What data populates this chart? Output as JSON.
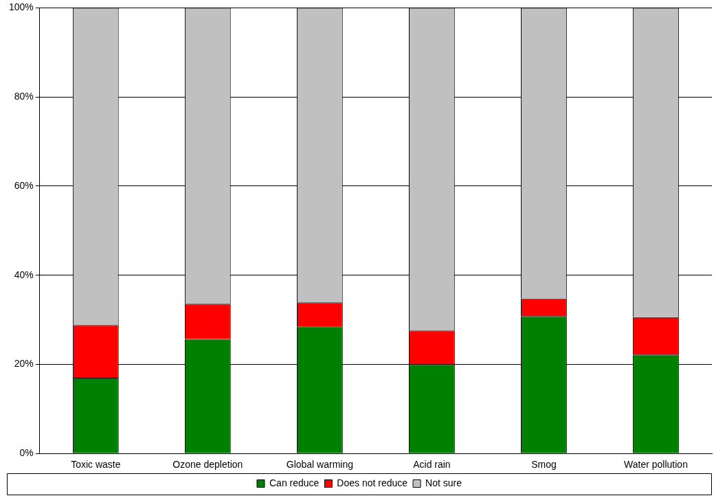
{
  "chart_data": {
    "type": "bar",
    "stacked": true,
    "categories": [
      "Toxic waste",
      "Ozone depletion",
      "Global warming",
      "Acid rain",
      "Smog",
      "Water pollution"
    ],
    "series": [
      {
        "name": "Can reduce",
        "color": "#008000",
        "values": [
          17.0,
          25.7,
          28.5,
          20.0,
          30.8,
          22.2
        ]
      },
      {
        "name": "Does not reduce",
        "color": "#ff0000",
        "values": [
          11.8,
          7.9,
          5.4,
          7.6,
          4.0,
          8.4
        ]
      },
      {
        "name": "Not sure",
        "color": "#c0c0c0",
        "values": [
          71.2,
          66.4,
          66.1,
          72.4,
          65.2,
          69.4
        ]
      }
    ],
    "ylim": [
      0,
      100
    ],
    "yticks": [
      {
        "value": 0,
        "label": "0%"
      },
      {
        "value": 20,
        "label": "20%"
      },
      {
        "value": 40,
        "label": "40%"
      },
      {
        "value": 60,
        "label": "60%"
      },
      {
        "value": 80,
        "label": "80%"
      },
      {
        "value": 100,
        "label": "100%"
      }
    ],
    "grid": "y",
    "legend": "bottom"
  }
}
